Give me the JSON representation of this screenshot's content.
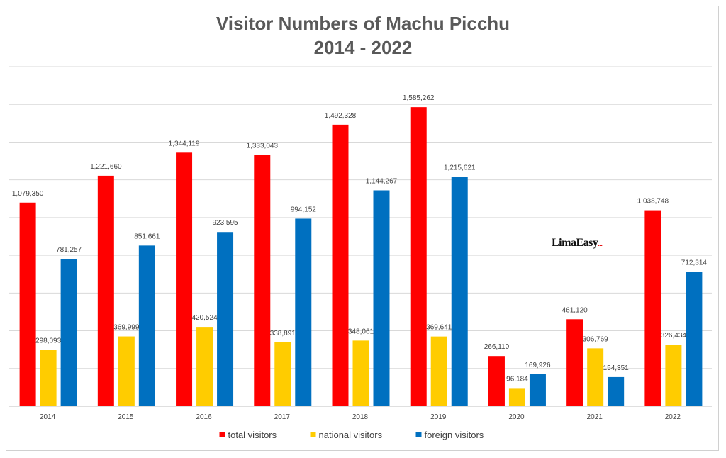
{
  "chart_data": {
    "type": "bar",
    "title": "Visitor Numbers of Machu Picchu",
    "subtitle": "2014 - 2022",
    "categories": [
      "2014",
      "2015",
      "2016",
      "2017",
      "2018",
      "2019",
      "2020",
      "2021",
      "2022"
    ],
    "series": [
      {
        "name": "total visitors",
        "color": "#ff0000",
        "values": [
          1079350,
          1221660,
          1344119,
          1333043,
          1492328,
          1585262,
          266110,
          461120,
          1038748
        ],
        "labels": [
          "1,079,350",
          "1,221,660",
          "1,344,119",
          "1,333,043",
          "1,492,328",
          "1,585,262",
          "266,110",
          "461,120",
          "1,038,748"
        ]
      },
      {
        "name": "national visitors",
        "color": "#ffcc00",
        "values": [
          298093,
          369999,
          420524,
          338891,
          348061,
          369641,
          96184,
          306769,
          326434
        ],
        "labels": [
          "298,093",
          "369,999",
          "420,524",
          "338,891",
          "348,061",
          "369,641",
          "96,184",
          "306,769",
          "326,434"
        ]
      },
      {
        "name": "foreign visitors",
        "color": "#0070c0",
        "values": [
          781257,
          851661,
          923595,
          994152,
          1144267,
          1215621,
          169926,
          154351,
          712314
        ],
        "labels": [
          "781,257",
          "851,661",
          "923,595",
          "994,152",
          "1,144,267",
          "1,215,621",
          "169,926",
          "154,351",
          "712,314"
        ]
      }
    ],
    "ylim": [
      0,
      1800000
    ],
    "gridline_step": 200000,
    "grid": true,
    "legend_position": "bottom",
    "gridline_color": "#d9d9d9"
  },
  "logo": {
    "text": "LimaEasy",
    "dots": "..."
  }
}
